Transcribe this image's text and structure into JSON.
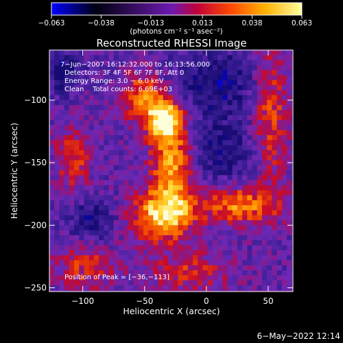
{
  "chart_data": {
    "type": "heatmap",
    "title": "Reconstructed RHESSI Image",
    "xlabel": "Heliocentric X (arcsec)",
    "ylabel": "Heliocentric Y (arcsec)",
    "xlim": [
      -127,
      70
    ],
    "ylim": [
      -253,
      -60
    ],
    "x_ticks": [
      -100,
      -50,
      0,
      50
    ],
    "y_ticks": [
      -100,
      -150,
      -200,
      -250
    ],
    "x_tick_labels": [
      "−100",
      "−50",
      "0",
      "50"
    ],
    "y_tick_labels": [
      "−100",
      "−150",
      "−200",
      "−250"
    ],
    "colorbar": {
      "label": "(photons cm⁻² s⁻¹ asec⁻²)",
      "range": [
        -0.063,
        0.063
      ],
      "ticks": [
        -0.063,
        -0.038,
        -0.013,
        0.013,
        0.038,
        0.063
      ],
      "tick_labels": [
        "−0.063",
        "−0.038",
        "−0.013",
        "0.013",
        "0.038",
        "0.063"
      ],
      "colors": [
        "#0000ff",
        "#000000",
        "#7a1fd0",
        "#d10000",
        "#ff7a00",
        "#ffff66",
        "#ffffff"
      ]
    },
    "info_lines": [
      "7−Jun−2007 16:12:32.000 to 16:13:56.000",
      "Detectors: 3F 4F 5F 6F 7F 8F, Att 0",
      "Energy Range: 3.0 − 6.0 keV",
      "Clean    Total counts: 6.69E+03"
    ],
    "peak_label": "Position of Peak = [−36,−113]",
    "peak": [
      -36,
      -113
    ]
  },
  "footer": {
    "timestamp": "6−May−2022 12:14"
  }
}
